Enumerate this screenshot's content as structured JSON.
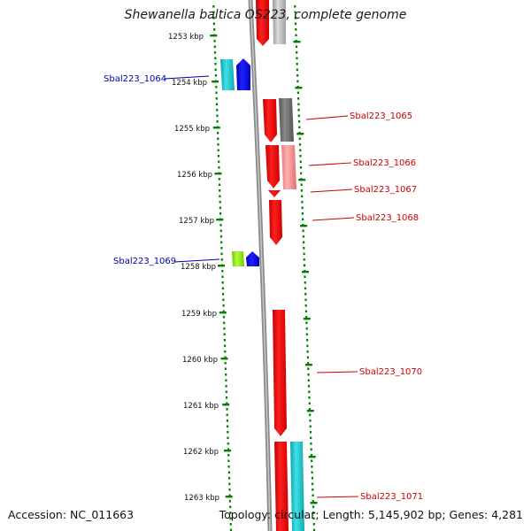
{
  "title": "Shewanella baltica OS223, complete genome",
  "accession": "Accession: NC_011663",
  "topology": "Topology: circular; Length: 5,145,902 bp; Genes: 4,281",
  "colors": {
    "ruler_tick": "#008000",
    "backbone": "#808080",
    "label_red": "#cc0000",
    "label_blue": "#0000aa"
  },
  "ruler_labels": [
    "1253 kbp",
    "1254 kbp",
    "1255 kbp",
    "1256 kbp",
    "1257 kbp",
    "1258 kbp",
    "1259 kbp",
    "1260 kbp",
    "1261 kbp",
    "1262 kbp",
    "1263 kbp"
  ],
  "gene_labels": [
    {
      "text": "Sbal223_1064",
      "color": "blue"
    },
    {
      "text": "Sbal223_1065",
      "color": "red"
    },
    {
      "text": "Sbal223_1066",
      "color": "red"
    },
    {
      "text": "Sbal223_1067",
      "color": "red"
    },
    {
      "text": "Sbal223_1068",
      "color": "red"
    },
    {
      "text": "Sbal223_1069",
      "color": "blue"
    },
    {
      "text": "Sbal223_1070",
      "color": "red"
    },
    {
      "text": "Sbal223_1071",
      "color": "red"
    }
  ]
}
